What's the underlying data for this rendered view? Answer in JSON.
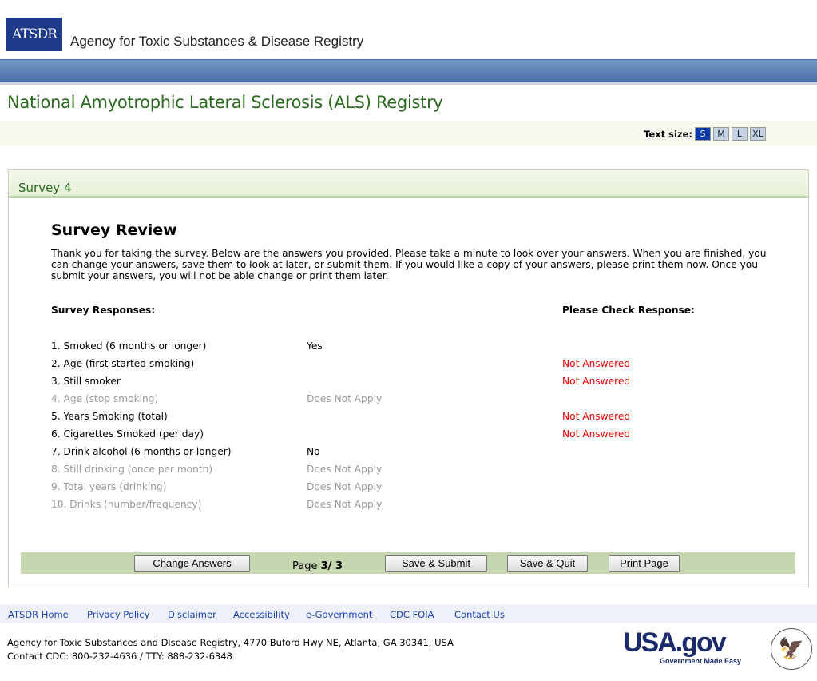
{
  "header": {
    "logo": "ATSDR",
    "agency": "Agency for Toxic Substances & Disease Registry",
    "title": "National Amyotrophic Lateral Sclerosis (ALS) Registry"
  },
  "text_size": {
    "label": "Text size:",
    "options": [
      "S",
      "M",
      "L",
      "XL"
    ],
    "selected": "S"
  },
  "survey": {
    "name": "Survey 4",
    "heading": "Survey Review",
    "intro": "Thank you for taking the survey. Below are the answers you provided. Please take a minute to look over your answers. When you are finished, you can change your answers, save them to look at later, or submit them. If you would like a copy of your answers, please print them now. Once you submit your answers, you will not be able change or print them later.",
    "col_responses": "Survey Responses:",
    "col_check": "Please Check Response:",
    "rows": [
      {
        "q": "1. Smoked (6 months or longer)",
        "a": "Yes",
        "check": "",
        "dim": false
      },
      {
        "q": "2. Age (first started smoking)",
        "a": "",
        "check": "Not Answered",
        "dim": false
      },
      {
        "q": "3. Still smoker",
        "a": "",
        "check": "Not Answered",
        "dim": false
      },
      {
        "q": "4. Age (stop smoking)",
        "a": "Does Not Apply",
        "check": "",
        "dim": true
      },
      {
        "q": "5. Years Smoking (total)",
        "a": "",
        "check": "Not Answered",
        "dim": false
      },
      {
        "q": "6. Cigarettes Smoked (per day)",
        "a": "",
        "check": "Not Answered",
        "dim": false
      },
      {
        "q": "7. Drink alcohol (6 months or longer)",
        "a": "No",
        "check": "",
        "dim": false
      },
      {
        "q": "8. Still drinking (once per month)",
        "a": "Does Not Apply",
        "check": "",
        "dim": true
      },
      {
        "q": "9. Total years (drinking)",
        "a": "Does Not Apply",
        "check": "",
        "dim": true
      },
      {
        "q": "10. Drinks (number/frequency)",
        "a": "Does Not Apply",
        "check": "",
        "dim": true
      }
    ],
    "buttons": {
      "change": "Change Answers",
      "submit": "Save & Submit",
      "quit": "Save & Quit",
      "print": "Print Page"
    },
    "page_label": "Page",
    "page_value": "3/ 3"
  },
  "footer": {
    "links": [
      "ATSDR Home",
      "Privacy Policy",
      "Disclaimer",
      "Accessibility",
      "e-Government",
      "CDC FOIA",
      "Contact Us"
    ],
    "address": "Agency for Toxic Substances and Disease Registry, 4770 Buford Hwy NE, Atlanta, GA 30341, USA",
    "contact": "Contact CDC: 800-232-4636 / TTY: 888-232-6348",
    "usagov": "USA.gov",
    "usagov_tag": "Government Made Easy"
  },
  "colors": {
    "green_title": "#2a6a1f",
    "not_answered": "#e00000",
    "button_bar": "#c5d6b0",
    "link": "#1a3fb0"
  }
}
